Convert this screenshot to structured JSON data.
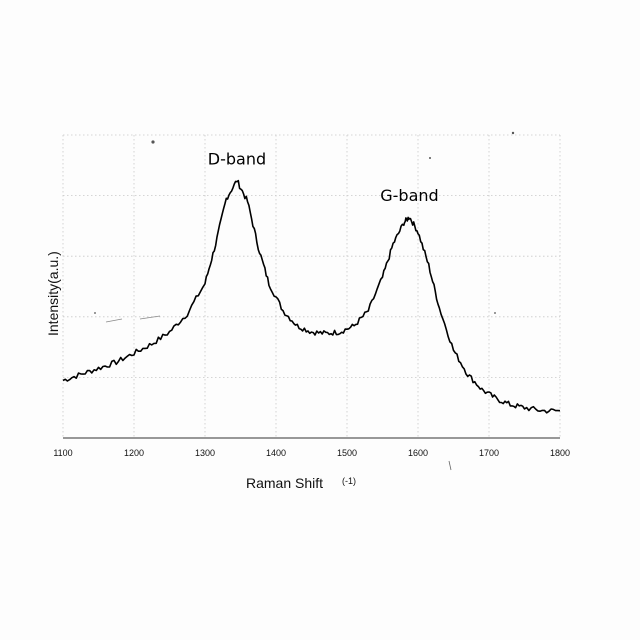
{
  "chart_data": {
    "type": "line",
    "title": "",
    "xlabel": "Raman Shift",
    "xlabel_unit": "(-1)",
    "ylabel": "Intensity(a.u.)",
    "xlim": [
      1100,
      1800
    ],
    "ylim": [
      0,
      1
    ],
    "x_ticks": [
      "1100",
      "1200",
      "1300",
      "1400",
      "1500",
      "1600",
      "1700",
      "1800"
    ],
    "grid": true,
    "legend": "none",
    "annotations": [
      {
        "text": "D-band",
        "x": 1345
      },
      {
        "text": "G-band",
        "x": 1588
      }
    ],
    "series": [
      {
        "x": [
          1100,
          1125,
          1150,
          1175,
          1200,
          1225,
          1250,
          1275,
          1300,
          1315,
          1330,
          1345,
          1360,
          1375,
          1390,
          1410,
          1430,
          1450,
          1470,
          1490,
          1510,
          1530,
          1550,
          1565,
          1580,
          1588,
          1600,
          1615,
          1630,
          1650,
          1670,
          1690,
          1710,
          1730,
          1750,
          1775,
          1800
        ],
        "y": [
          0.19,
          0.21,
          0.23,
          0.25,
          0.28,
          0.31,
          0.35,
          0.41,
          0.51,
          0.64,
          0.79,
          0.85,
          0.78,
          0.63,
          0.51,
          0.42,
          0.37,
          0.35,
          0.345,
          0.35,
          0.37,
          0.42,
          0.53,
          0.64,
          0.71,
          0.73,
          0.68,
          0.57,
          0.43,
          0.29,
          0.21,
          0.16,
          0.13,
          0.11,
          0.1,
          0.09,
          0.09
        ]
      }
    ]
  }
}
